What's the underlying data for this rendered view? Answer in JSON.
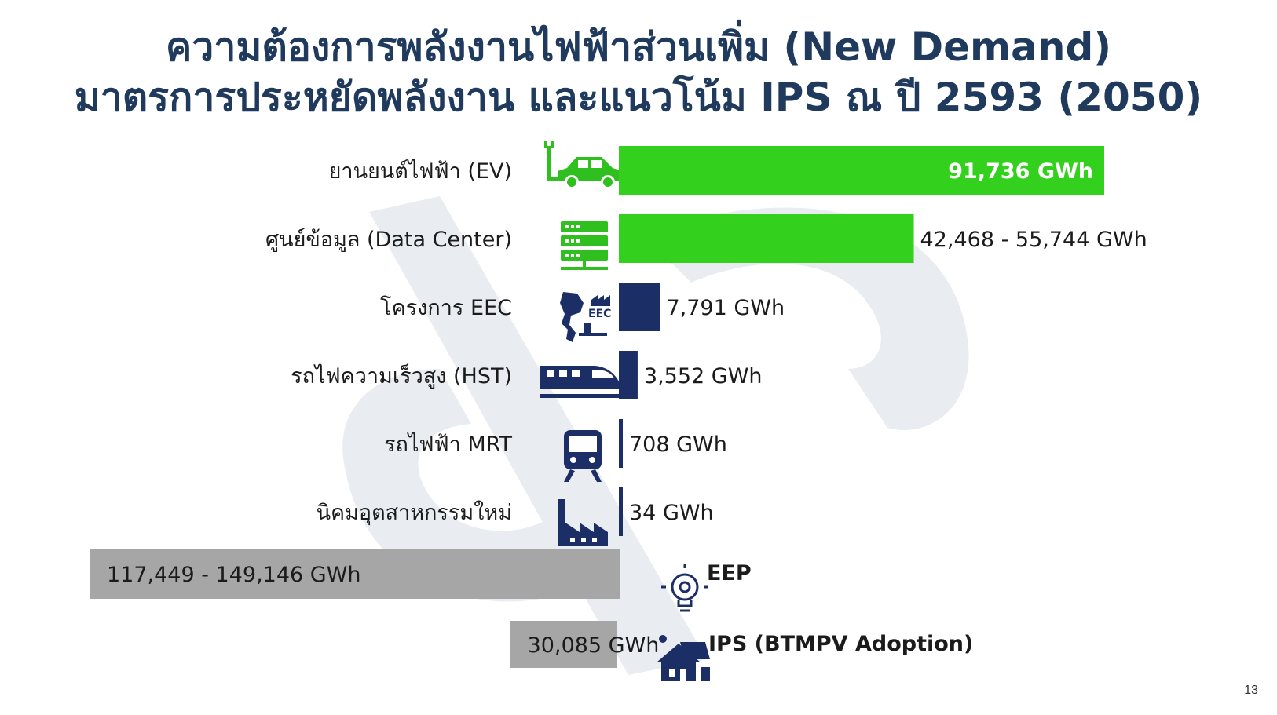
{
  "slide": {
    "title_line1": "ความต้องการพลังงานไฟฟ้าส่วนเพิ่ม (New Demand)",
    "title_line2": "มาตรการประหยัดพลังงาน และแนวโน้ม IPS ณ ปี 2593 (2050)",
    "page_number": "13"
  },
  "colors": {
    "title": "#1f3a5c",
    "increase_large": "#33d11d",
    "increase_small": "#1b2f66",
    "reduction": "#a6a6a6",
    "icon": "#1b2f66",
    "icon_green": "#2fbf1f",
    "watermark": "#e9edf2"
  },
  "chart_data": {
    "type": "bar",
    "orientation": "horizontal",
    "increases": {
      "categories": [
        "ยานยนต์ไฟฟ้า (EV)",
        "ศูนย์ข้อมูล (Data Center)",
        "โครงการ EEC",
        "รถไฟความเร็วสูง (HST)",
        "รถไฟฟ้า MRT",
        "นิคมอุตสาหกรรมใหม่"
      ],
      "values": [
        91736,
        55744,
        7791,
        3552,
        708,
        34
      ],
      "value_labels": [
        "91,736 GWh",
        "42,468 - 55,744 GWh",
        "7,791 GWh",
        "3,552 GWh",
        "708 GWh",
        "34 GWh"
      ],
      "icons": [
        "ev-car-icon",
        "server-icon",
        "thailand-map-eec-icon",
        "high-speed-train-icon",
        "metro-train-icon",
        "factory-icon"
      ]
    },
    "reductions": {
      "categories": [
        "EEP",
        "IPS (BTMPV Adoption)"
      ],
      "values": [
        149146,
        30085
      ],
      "value_labels": [
        "117,449 - 149,146  GWh",
        "30,085  GWh"
      ],
      "icons": [
        "lightbulb-gear-icon",
        "solar-house-icon"
      ]
    }
  }
}
